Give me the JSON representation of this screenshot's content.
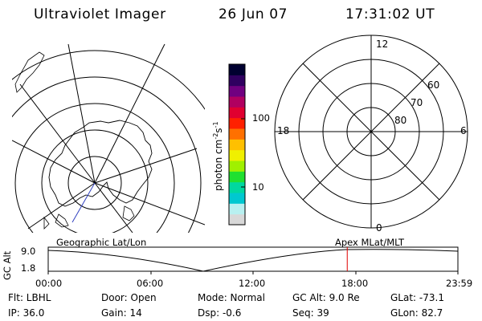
{
  "header": {
    "title": "Ultraviolet Imager",
    "date": "26 Jun 07",
    "time": "17:31:02 UT"
  },
  "geo_panel": {
    "label": "Geographic Lat/Lon"
  },
  "polar_panel": {
    "label": "Apex MLat/MLT",
    "mlt_labels": {
      "top": "12",
      "left": "18",
      "right": "6",
      "bottom": "0"
    },
    "lat_labels": [
      "60",
      "70",
      "80"
    ]
  },
  "colorbar": {
    "unit_label": "photon cm",
    "unit_sup1": "-2",
    "unit_s": "s",
    "unit_sup2": "-1",
    "tick_100": "100",
    "tick_10": "10",
    "colors": [
      "#d8d8d8",
      "#b8f0f0",
      "#00c8d0",
      "#00d8a0",
      "#20e030",
      "#a0f000",
      "#f0f000",
      "#ffc000",
      "#ff7000",
      "#ff2000",
      "#e00030",
      "#b00060",
      "#700080",
      "#300060",
      "#000030"
    ]
  },
  "timeline": {
    "y_axis_label": "GC Alt",
    "y_ticks": [
      "9.0",
      "1.8"
    ],
    "x_ticks": [
      "00:00",
      "06:00",
      "12:00",
      "18:00",
      "23:59"
    ],
    "current_time_fraction": 0.7299,
    "marker_color": "#e00000"
  },
  "info": {
    "flt": "Flt: LBHL",
    "ip": "IP: 36.0",
    "door": "Door: Open",
    "gain": "Gain: 14",
    "mode": "Mode: Normal",
    "dsp": "Dsp:   -0.6",
    "gc_alt": "GC Alt: 9.0 Re",
    "seq": "Seq: 39",
    "glat": "GLat: -73.1",
    "glon": "GLon:  82.7"
  }
}
